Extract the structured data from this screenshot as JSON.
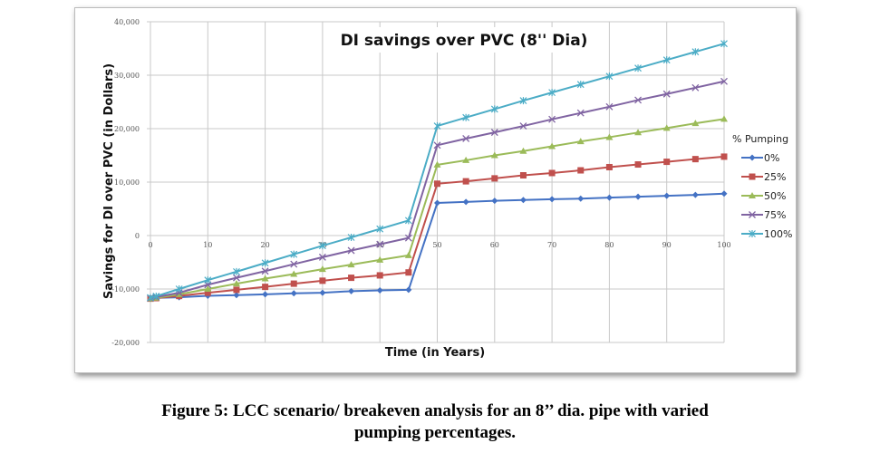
{
  "chart_data": {
    "type": "line",
    "title": "DI savings over PVC (8'' Dia)",
    "xlabel": "Time (in Years)",
    "ylabel": "Savings for DI over PVC (in Dollars)",
    "xlim": [
      0,
      100
    ],
    "ylim": [
      -20000,
      40000
    ],
    "x_ticks": [
      "0",
      "10",
      "20",
      "30",
      "40",
      "50",
      "60",
      "70",
      "80",
      "90",
      "100"
    ],
    "y_ticks": [
      "-20,000",
      "-10,000",
      "0",
      "10,000",
      "20,000",
      "30,000",
      "40,000"
    ],
    "grid": true,
    "legend_title": "% Pumping",
    "legend_position": "right",
    "x": [
      0,
      1,
      5,
      10,
      15,
      20,
      25,
      30,
      35,
      40,
      45,
      50,
      55,
      60,
      65,
      70,
      75,
      80,
      85,
      90,
      95,
      100
    ],
    "series": [
      {
        "name": "0%",
        "color": "#4472C4",
        "marker": "diamond",
        "values": [
          -11700,
          -11650,
          -11550,
          -11270,
          -11150,
          -11000,
          -10800,
          -10700,
          -10400,
          -10250,
          -10150,
          6100,
          6300,
          6500,
          6650,
          6800,
          6900,
          7100,
          7270,
          7440,
          7600,
          7830
        ]
      },
      {
        "name": "25%",
        "color": "#C0504D",
        "marker": "square",
        "values": [
          -11800,
          -11700,
          -11300,
          -10700,
          -10150,
          -9600,
          -9000,
          -8450,
          -7900,
          -7450,
          -6900,
          9700,
          10150,
          10700,
          11270,
          11700,
          12200,
          12800,
          13300,
          13800,
          14300,
          14760
        ]
      },
      {
        "name": "50%",
        "color": "#9BBB59",
        "marker": "triangle",
        "values": [
          -11800,
          -11650,
          -11000,
          -10000,
          -9000,
          -8050,
          -7200,
          -6300,
          -5450,
          -4560,
          -3700,
          13240,
          14080,
          15000,
          15800,
          16700,
          17600,
          18400,
          19270,
          20100,
          21000,
          21800
        ]
      },
      {
        "name": "75%",
        "color": "#8064A2",
        "marker": "x",
        "values": [
          -11700,
          -11500,
          -10700,
          -9200,
          -7900,
          -6650,
          -5350,
          -4050,
          -2800,
          -1630,
          -450,
          16900,
          18140,
          19300,
          20500,
          21750,
          22930,
          24100,
          25350,
          26480,
          27660,
          28850
        ]
      },
      {
        "name": "100%",
        "color": "#4BACC6",
        "marker": "star",
        "values": [
          -11600,
          -11350,
          -10000,
          -8340,
          -6760,
          -5130,
          -3500,
          -1900,
          -340,
          1240,
          2820,
          20500,
          22080,
          23660,
          25240,
          26760,
          28280,
          29800,
          31320,
          32850,
          34370,
          35900
        ]
      }
    ]
  },
  "caption": {
    "line1": "Figure 5: LCC scenario/ breakeven analysis for an 8’’ dia. pipe with varied",
    "line2": "pumping percentages."
  }
}
